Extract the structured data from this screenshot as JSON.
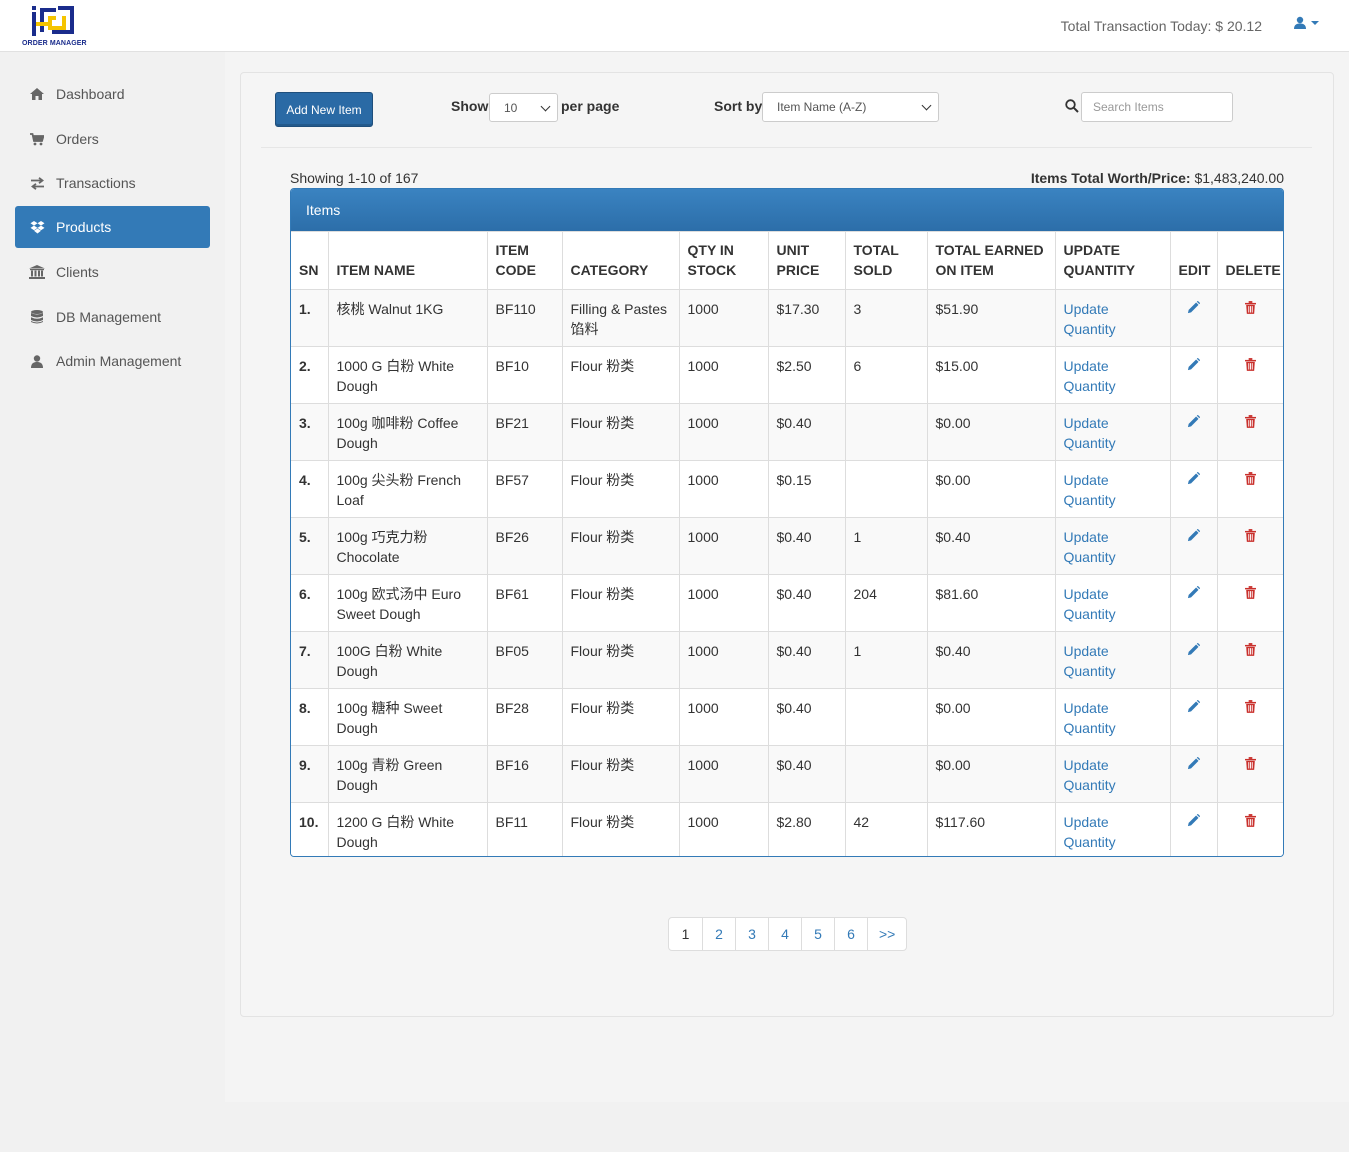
{
  "header": {
    "logo_text": "ORDER MANAGER",
    "total_today": "Total Transaction Today: $ 20.12"
  },
  "sidebar": {
    "items": [
      {
        "label": "Dashboard",
        "icon": "home-icon"
      },
      {
        "label": "Orders",
        "icon": "cart-icon"
      },
      {
        "label": "Transactions",
        "icon": "exchange-icon"
      },
      {
        "label": "Products",
        "icon": "dropbox-icon",
        "active": true
      },
      {
        "label": "Clients",
        "icon": "bank-icon"
      },
      {
        "label": "DB Management",
        "icon": "database-icon"
      },
      {
        "label": "Admin Management",
        "icon": "user-icon"
      }
    ]
  },
  "toolbar": {
    "add_label": "Add New Item",
    "show_label": "Show",
    "per_page_value": "10",
    "per_page_label": "per page",
    "sort_label": "Sort by",
    "sort_value": "Item Name (A-Z)",
    "search_placeholder": "Search Items"
  },
  "summary": {
    "showing": "Showing 1-10 of 167",
    "worth_label": "Items Total Worth/Price:",
    "worth_value": "$1,483,240.00"
  },
  "table": {
    "title": "Items",
    "headers": {
      "sn": "SN",
      "name": "ITEM NAME",
      "code_1": "ITEM",
      "code_2": "CODE",
      "category": "CATEGORY",
      "qty_1": "QTY IN",
      "qty_2": "STOCK",
      "price_1": "UNIT",
      "price_2": "PRICE",
      "sold_1": "TOTAL",
      "sold_2": "SOLD",
      "earned_1": "TOTAL EARNED",
      "earned_2": "ON ITEM",
      "update_1": "UPDATE",
      "update_2": "QUANTITY",
      "edit": "EDIT",
      "delete": "DELETE"
    },
    "rows": [
      {
        "sn": "1.",
        "name": "核桃 Walnut 1KG",
        "code": "BF110",
        "category": "Filling & Pastes 馅料",
        "qty": "1000",
        "price": "$17.30",
        "sold": "3",
        "earned": "$51.90",
        "update": "Update Quantity"
      },
      {
        "sn": "2.",
        "name": "1000 G 白粉 White Dough",
        "code": "BF10",
        "category": "Flour 粉类",
        "qty": "1000",
        "price": "$2.50",
        "sold": "6",
        "earned": "$15.00",
        "update": "Update Quantity"
      },
      {
        "sn": "3.",
        "name": "100g 咖啡粉 Coffee Dough",
        "code": "BF21",
        "category": "Flour 粉类",
        "qty": "1000",
        "price": "$0.40",
        "sold": "",
        "earned": "$0.00",
        "update": "Update Quantity"
      },
      {
        "sn": "4.",
        "name": "100g 尖头粉 French Loaf",
        "code": "BF57",
        "category": "Flour 粉类",
        "qty": "1000",
        "price": "$0.15",
        "sold": "",
        "earned": "$0.00",
        "update": "Update Quantity"
      },
      {
        "sn": "5.",
        "name": "100g 巧克力粉 Chocolate",
        "code": "BF26",
        "category": "Flour 粉类",
        "qty": "1000",
        "price": "$0.40",
        "sold": "1",
        "earned": "$0.40",
        "update": "Update Quantity"
      },
      {
        "sn": "6.",
        "name": "100g 欧式汤中 Euro Sweet Dough",
        "code": "BF61",
        "category": "Flour 粉类",
        "qty": "1000",
        "price": "$0.40",
        "sold": "204",
        "earned": "$81.60",
        "update": "Update Quantity"
      },
      {
        "sn": "7.",
        "name": "100G 白粉 White Dough",
        "code": "BF05",
        "category": "Flour 粉类",
        "qty": "1000",
        "price": "$0.40",
        "sold": "1",
        "earned": "$0.40",
        "update": "Update Quantity"
      },
      {
        "sn": "8.",
        "name": "100g 糖种 Sweet Dough",
        "code": "BF28",
        "category": "Flour 粉类",
        "qty": "1000",
        "price": "$0.40",
        "sold": "",
        "earned": "$0.00",
        "update": "Update Quantity"
      },
      {
        "sn": "9.",
        "name": "100g 青粉 Green Dough",
        "code": "BF16",
        "category": "Flour 粉类",
        "qty": "1000",
        "price": "$0.40",
        "sold": "",
        "earned": "$0.00",
        "update": "Update Quantity"
      },
      {
        "sn": "10.",
        "name": "1200 G 白粉 White Dough",
        "code": "BF11",
        "category": "Flour 粉类",
        "qty": "1000",
        "price": "$2.80",
        "sold": "42",
        "earned": "$117.60",
        "update": "Update Quantity"
      }
    ]
  },
  "pagination": {
    "pages": [
      "1",
      "2",
      "3",
      "4",
      "5",
      "6",
      ">>"
    ],
    "current": "1"
  },
  "colors": {
    "primary": "#337ab7",
    "delete": "#c9302c",
    "logo_blue": "#1a2c8c",
    "logo_yellow": "#f5c400"
  }
}
